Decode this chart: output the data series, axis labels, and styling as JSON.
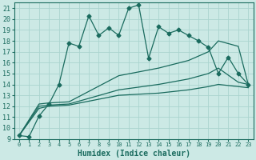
{
  "xlabel": "Humidex (Indice chaleur)",
  "background_color": "#cce9e5",
  "grid_color": "#aad4cf",
  "line_color": "#1a6b5e",
  "xlim": [
    -0.5,
    23.5
  ],
  "ylim": [
    9,
    21.5
  ],
  "xticks": [
    0,
    1,
    2,
    3,
    4,
    5,
    6,
    7,
    8,
    9,
    10,
    11,
    12,
    13,
    14,
    15,
    16,
    17,
    18,
    19,
    20,
    21,
    22,
    23
  ],
  "yticks": [
    9,
    10,
    11,
    12,
    13,
    14,
    15,
    16,
    17,
    18,
    19,
    20,
    21
  ],
  "curve1_x": [
    0,
    1,
    2,
    3,
    4,
    5,
    6,
    7,
    8,
    9,
    10,
    11,
    12,
    13,
    14,
    15,
    16,
    17,
    18,
    19,
    20,
    21,
    22,
    23
  ],
  "curve1_y": [
    9.3,
    9.2,
    11.1,
    12.2,
    14.0,
    17.8,
    17.5,
    20.3,
    18.5,
    19.2,
    18.5,
    21.0,
    21.3,
    16.4,
    19.3,
    18.7,
    19.0,
    18.5,
    18.0,
    17.4,
    15.0,
    16.5,
    15.0,
    14.0
  ],
  "curve2_x": [
    0,
    2,
    3,
    5,
    10,
    14,
    17,
    19,
    20,
    22,
    23
  ],
  "curve2_y": [
    9.3,
    12.2,
    12.3,
    12.4,
    14.8,
    15.5,
    16.2,
    17.0,
    18.0,
    17.5,
    14.0
  ],
  "curve3_x": [
    0,
    2,
    3,
    5,
    10,
    14,
    17,
    19,
    20,
    22,
    23
  ],
  "curve3_y": [
    9.3,
    12.0,
    12.1,
    12.2,
    13.5,
    14.0,
    14.5,
    15.0,
    15.5,
    14.2,
    14.0
  ],
  "curve4_x": [
    0,
    2,
    3,
    5,
    10,
    14,
    17,
    19,
    20,
    22,
    23
  ],
  "curve4_y": [
    9.3,
    11.8,
    12.0,
    12.1,
    13.0,
    13.2,
    13.5,
    13.8,
    14.0,
    13.8,
    13.7
  ]
}
